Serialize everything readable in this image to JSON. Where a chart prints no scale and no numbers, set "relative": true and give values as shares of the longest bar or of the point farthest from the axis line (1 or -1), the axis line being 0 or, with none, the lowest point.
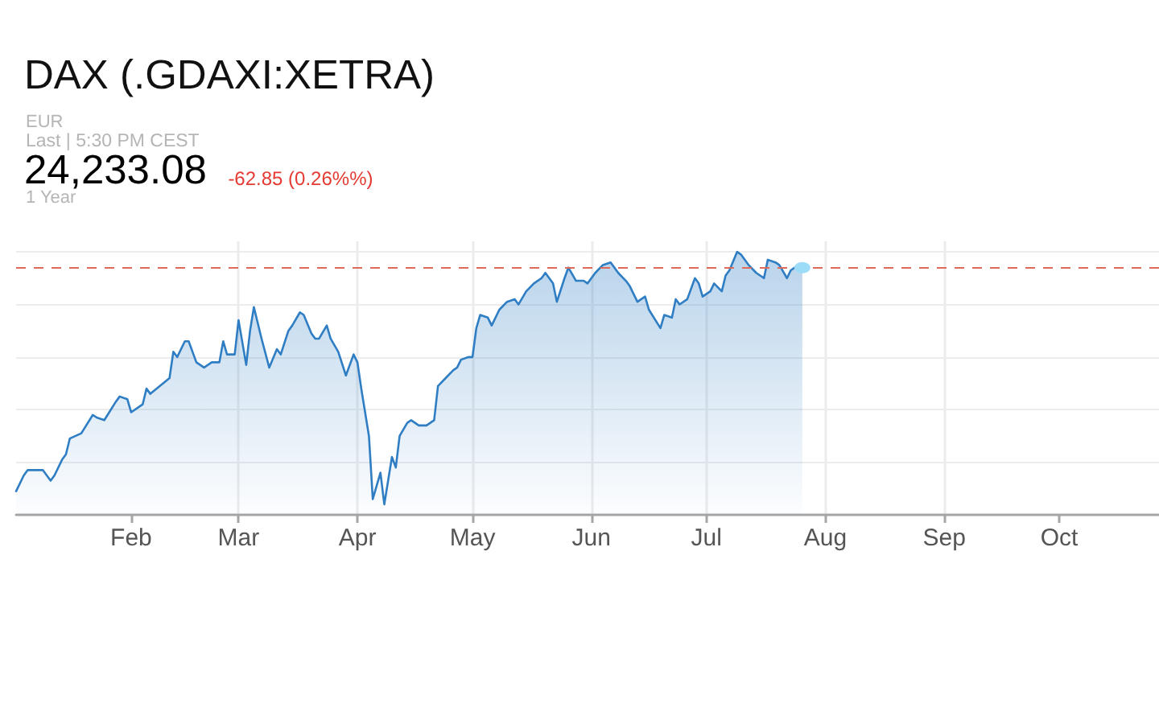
{
  "chart_data": {
    "type": "area",
    "title": "DAX (.GDAXI:XETRA)",
    "annotations": [
      "EUR",
      "Last | 5:30 PM CEST",
      "24,233.08",
      "-62.85 (0.26%%)",
      "1 Year"
    ],
    "relative": true,
    "grid": true,
    "x": [
      "--01-02",
      "--01-04",
      "--01-05",
      "--01-07",
      "--01-09",
      "--01-11",
      "--01-12",
      "--01-14",
      "--01-15",
      "--01-16",
      "--01-19",
      "--01-22",
      "--01-23",
      "--01-25",
      "--01-28",
      "--01-29",
      "--01-31",
      "--02-01",
      "--02-04",
      "--02-05",
      "--02-06",
      "--02-11",
      "--02-12",
      "--02-13",
      "--02-15",
      "--02-16",
      "--02-18",
      "--02-20",
      "--02-22",
      "--02-24",
      "--02-25",
      "--02-26",
      "--02-28",
      "--03-01",
      "--03-03",
      "--03-04",
      "--03-05",
      "--03-07",
      "--03-09",
      "--03-11",
      "--03-12",
      "--03-14",
      "--03-15",
      "--03-17",
      "--03-18",
      "--03-20",
      "--03-21",
      "--03-22",
      "--03-24",
      "--03-25",
      "--03-27",
      "--03-29",
      "--03-31",
      "--04-01",
      "--04-02",
      "--04-04",
      "--04-05",
      "--04-07",
      "--04-08",
      "--04-10",
      "--04-11",
      "--04-12",
      "--04-14",
      "--04-15",
      "--04-17",
      "--04-19",
      "--04-21",
      "--04-22",
      "--04-24",
      "--04-26",
      "--04-27",
      "--04-28",
      "--04-30",
      "--05-01",
      "--05-02",
      "--05-03",
      "--05-05",
      "--05-06",
      "--05-08",
      "--05-10",
      "--05-12",
      "--05-13",
      "--05-15",
      "--05-17",
      "--05-19",
      "--05-20",
      "--05-22",
      "--05-23",
      "--05-25",
      "--05-26",
      "--05-28",
      "--05-30",
      "--05-31",
      "--06-02",
      "--06-04",
      "--06-06",
      "--06-08",
      "--06-10",
      "--06-11",
      "--06-13",
      "--06-15",
      "--06-16",
      "--06-19",
      "--06-20",
      "--06-22",
      "--06-23",
      "--06-24",
      "--06-26",
      "--06-28",
      "--06-29",
      "--06-30",
      "--07-02",
      "--07-03",
      "--07-05",
      "--07-06",
      "--07-07",
      "--07-09",
      "--07-10",
      "--07-12",
      "--07-14",
      "--07-16",
      "--07-17",
      "--07-19",
      "--07-20",
      "--07-22",
      "--07-23",
      "--07-25",
      "--07-26"
    ],
    "series": [
      {
        "color": "#2f7ec4",
        "values": [
          0.09,
          0.15,
          0.17,
          0.17,
          0.17,
          0.13,
          0.15,
          0.21,
          0.23,
          0.29,
          0.31,
          0.38,
          0.37,
          0.36,
          0.43,
          0.45,
          0.44,
          0.39,
          0.42,
          0.48,
          0.46,
          0.52,
          0.62,
          0.6,
          0.66,
          0.66,
          0.58,
          0.56,
          0.58,
          0.58,
          0.66,
          0.61,
          0.61,
          0.74,
          0.57,
          0.7,
          0.79,
          0.67,
          0.56,
          0.63,
          0.61,
          0.7,
          0.72,
          0.77,
          0.76,
          0.69,
          0.67,
          0.67,
          0.72,
          0.67,
          0.62,
          0.53,
          0.61,
          0.58,
          0.48,
          0.3,
          0.06,
          0.16,
          0.04,
          0.22,
          0.18,
          0.3,
          0.35,
          0.36,
          0.34,
          0.34,
          0.36,
          0.49,
          0.52,
          0.55,
          0.56,
          0.59,
          0.6,
          0.6,
          0.71,
          0.76,
          0.75,
          0.72,
          0.78,
          0.81,
          0.82,
          0.8,
          0.85,
          0.88,
          0.9,
          0.92,
          0.88,
          0.81,
          0.9,
          0.94,
          0.89,
          0.89,
          0.88,
          0.92,
          0.95,
          0.96,
          0.92,
          0.89,
          0.87,
          0.81,
          0.83,
          0.78,
          0.71,
          0.76,
          0.75,
          0.82,
          0.8,
          0.82,
          0.9,
          0.88,
          0.83,
          0.85,
          0.88,
          0.85,
          0.91,
          0.93,
          1.0,
          0.99,
          0.95,
          0.92,
          0.9,
          0.97,
          0.96,
          0.95,
          0.9,
          0.93,
          0.95,
          0.94
        ]
      },
      {
        "type": "scatter",
        "x": [
          "--07-26"
        ],
        "values": [
          0.94
        ],
        "color": "#9ddcf8",
        "marker": "circle"
      }
    ],
    "xlim": [
      "--01-02",
      "--10-27"
    ],
    "xticks": [
      {
        "value": "--02-01",
        "label": "Feb"
      },
      {
        "value": "--03-01",
        "label": "Mar"
      },
      {
        "value": "--04-01",
        "label": "Apr"
      },
      {
        "value": "--05-01",
        "label": "May"
      },
      {
        "value": "--06-01",
        "label": "Jun"
      },
      {
        "value": "--07-01",
        "label": "Jul"
      },
      {
        "value": "--08-01",
        "label": "Aug"
      },
      {
        "value": "--09-01",
        "label": "Sep"
      },
      {
        "value": "--10-01",
        "label": "Oct"
      }
    ],
    "ref_lines": [
      {
        "axis": "y",
        "value": 0.94,
        "color": "#e06a5a",
        "line_style": "dashed"
      }
    ]
  }
}
